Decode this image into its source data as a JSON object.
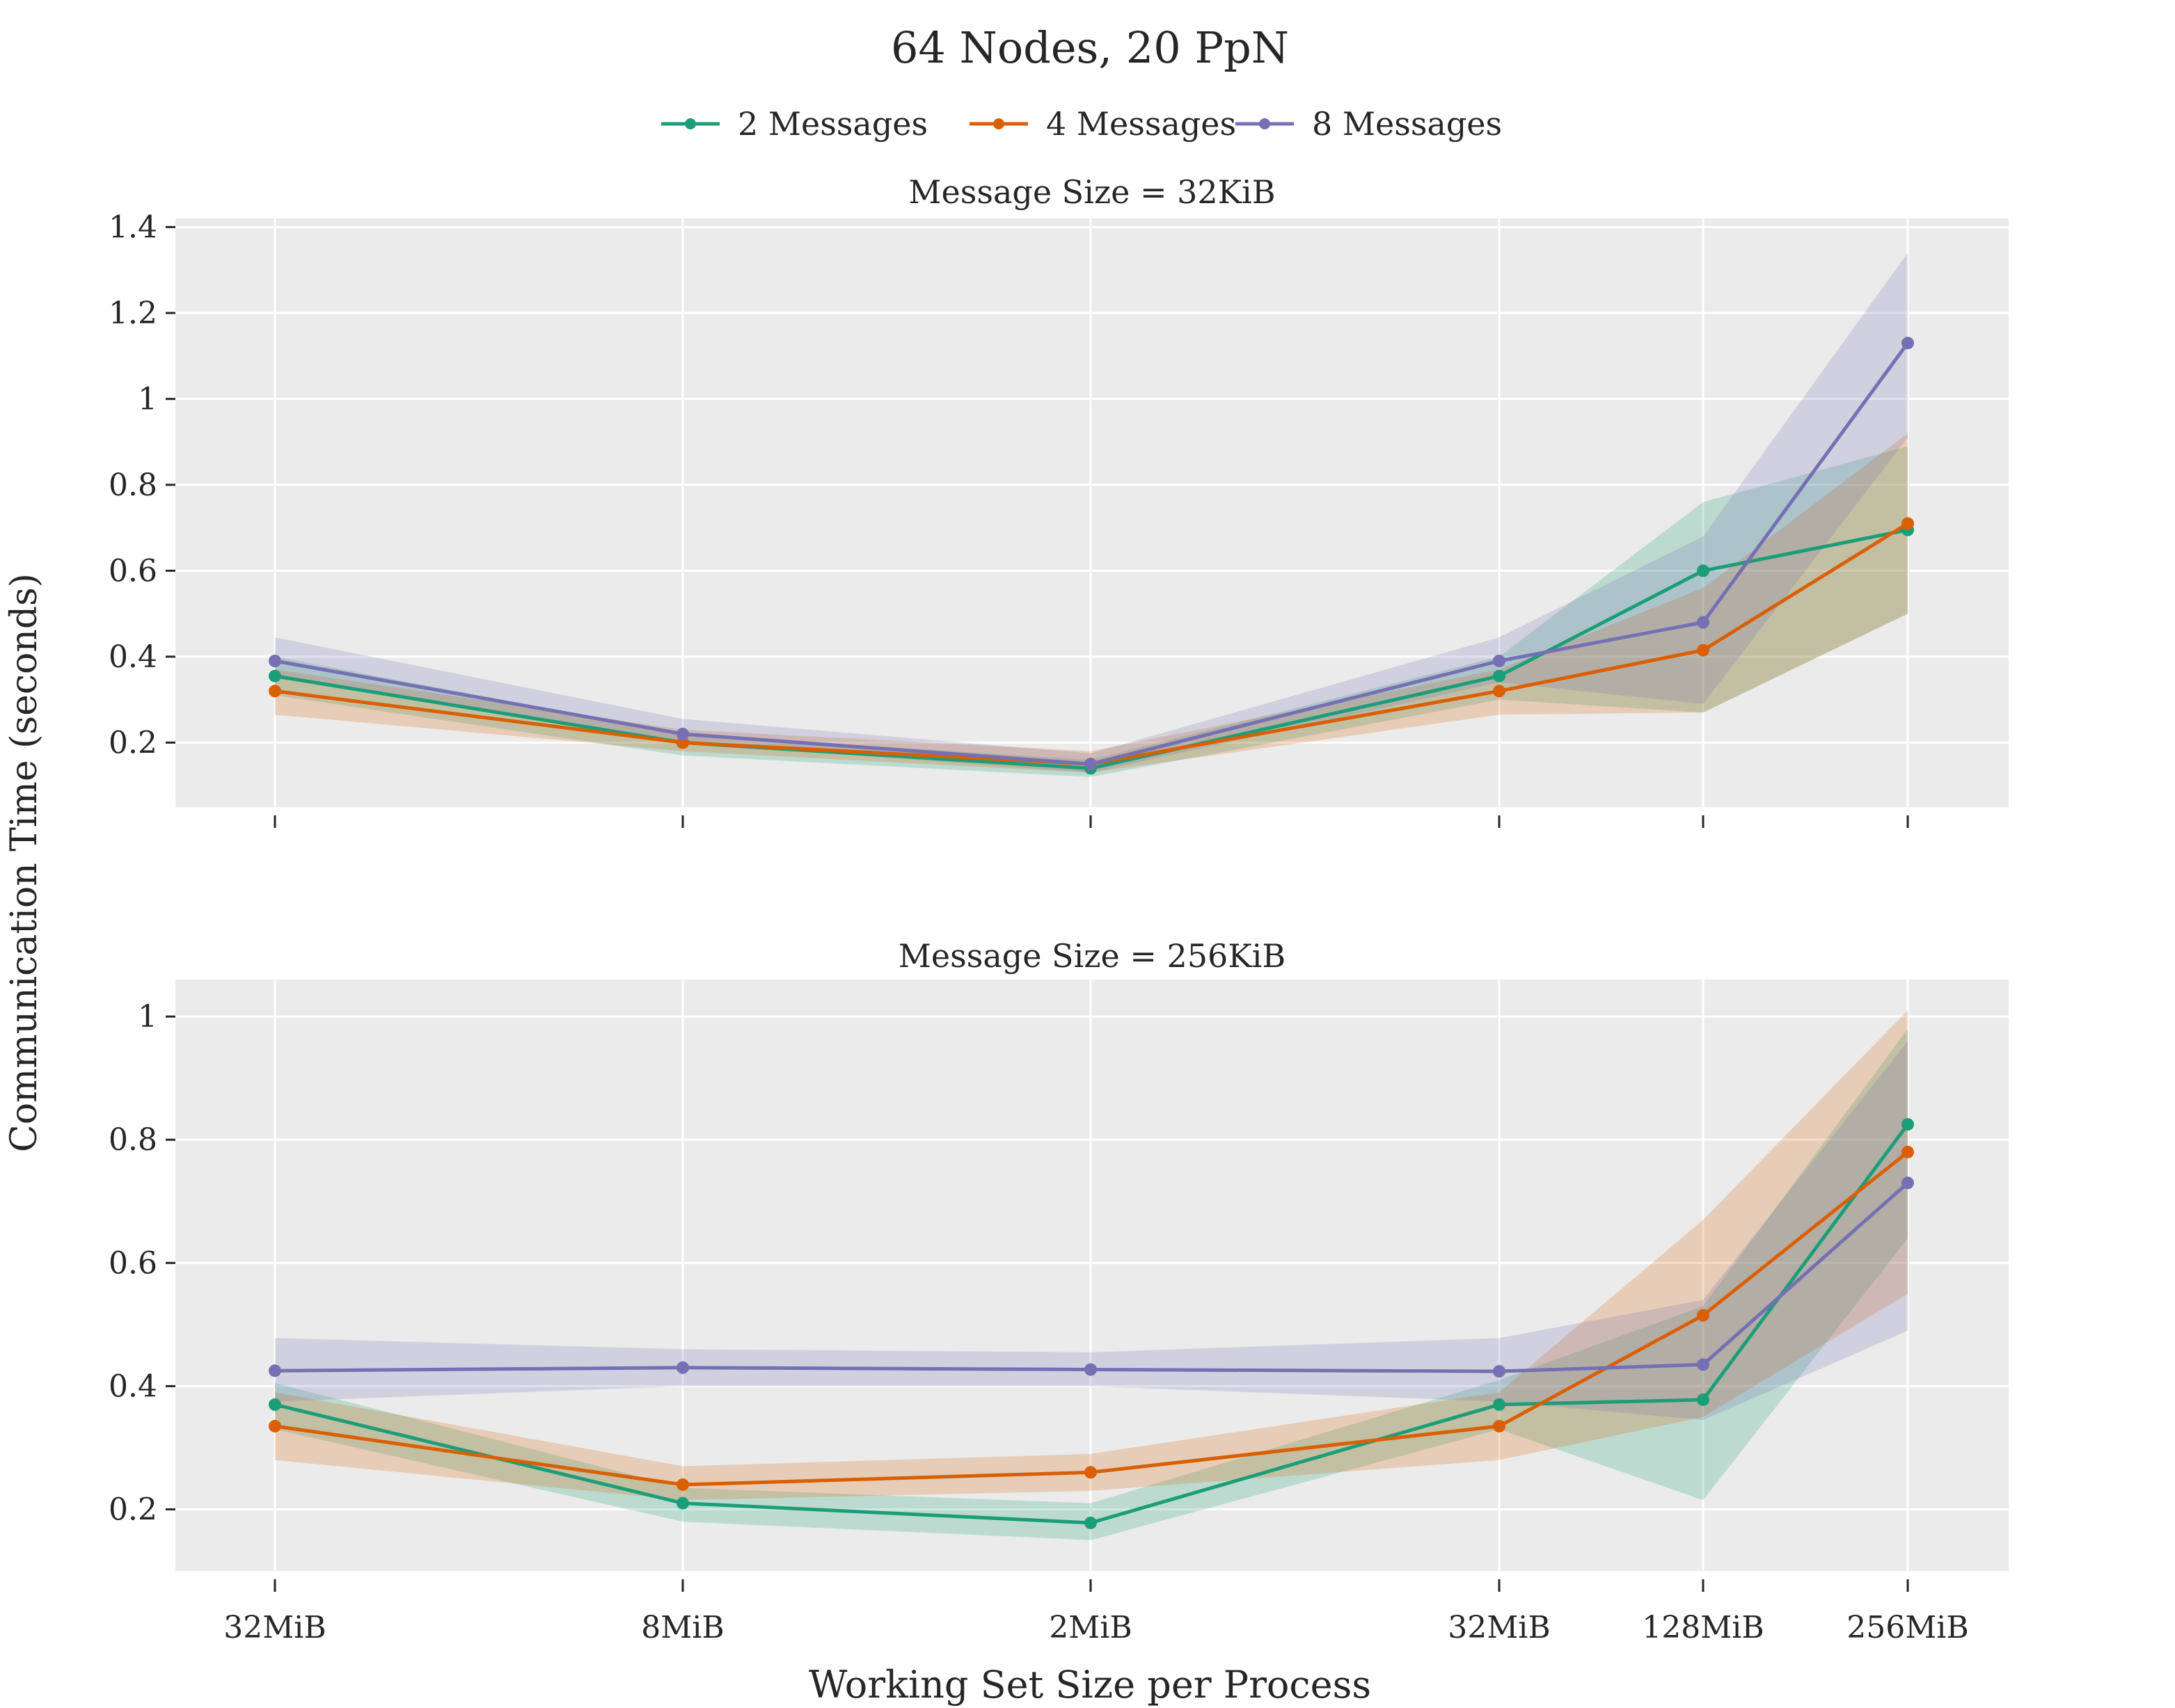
{
  "chart_data": {
    "type": "line",
    "title": "64 Nodes, 20 PpN",
    "xlabel": "Working Set Size per Process",
    "ylabel": "Communication Time (seconds)",
    "x_categories": [
      "32MiB",
      "8MiB",
      "2MiB",
      "32MiB",
      "128MiB",
      "256MiB"
    ],
    "legend": {
      "placement": "top-center",
      "entries": [
        "2 Messages",
        "4 Messages",
        "8 Messages"
      ]
    },
    "colors": {
      "s2": "#1b9e77",
      "s4": "#d95f02",
      "s8": "#7570b3",
      "plot_bg": "#ebebeb",
      "grid": "#ffffff"
    },
    "grid": true,
    "panels": [
      {
        "title": "Message Size = 32KiB",
        "ylim": [
          0.05,
          1.42
        ],
        "yticks": [
          0.2,
          0.4,
          0.6,
          0.8,
          1.0,
          1.2,
          1.4
        ],
        "ytick_labels": [
          "0.2",
          "0.4",
          "0.6",
          "0.8",
          "1",
          "1.2",
          "1.4"
        ],
        "show_x_tick_labels": false,
        "series": [
          {
            "name": "2 Messages",
            "values": [
              0.355,
              0.2,
              0.14,
              0.355,
              0.6,
              0.695
            ],
            "lower": [
              0.31,
              0.17,
              0.12,
              0.3,
              0.27,
              0.5
            ],
            "upper": [
              0.4,
              0.22,
              0.16,
              0.4,
              0.76,
              0.89
            ]
          },
          {
            "name": "4 Messages",
            "values": [
              0.32,
              0.2,
              0.15,
              0.32,
              0.415,
              0.71
            ],
            "lower": [
              0.265,
              0.18,
              0.13,
              0.265,
              0.27,
              0.5
            ],
            "upper": [
              0.37,
              0.23,
              0.18,
              0.37,
              0.56,
              0.92
            ]
          },
          {
            "name": "8 Messages",
            "values": [
              0.39,
              0.22,
              0.15,
              0.39,
              0.48,
              1.13
            ],
            "lower": [
              0.35,
              0.2,
              0.13,
              0.34,
              0.29,
              0.91
            ],
            "upper": [
              0.445,
              0.255,
              0.175,
              0.445,
              0.68,
              1.34
            ]
          }
        ]
      },
      {
        "title": "Message Size = 256KiB",
        "ylim": [
          0.1,
          1.06
        ],
        "yticks": [
          0.2,
          0.4,
          0.6,
          0.8,
          1.0
        ],
        "ytick_labels": [
          "0.2",
          "0.4",
          "0.6",
          "0.8",
          "1"
        ],
        "show_x_tick_labels": true,
        "series": [
          {
            "name": "2 Messages",
            "values": [
              0.37,
              0.21,
              0.178,
              0.37,
              0.378,
              0.825
            ],
            "lower": [
              0.33,
              0.18,
              0.15,
              0.33,
              0.215,
              0.64
            ],
            "upper": [
              0.405,
              0.235,
              0.21,
              0.41,
              0.53,
              0.98
            ]
          },
          {
            "name": "4 Messages",
            "values": [
              0.335,
              0.24,
              0.26,
              0.335,
              0.515,
              0.78
            ],
            "lower": [
              0.28,
              0.215,
              0.23,
              0.28,
              0.35,
              0.55
            ],
            "upper": [
              0.39,
              0.27,
              0.29,
              0.39,
              0.67,
              1.01
            ]
          },
          {
            "name": "8 Messages",
            "values": [
              0.425,
              0.43,
              0.427,
              0.424,
              0.435,
              0.73
            ],
            "lower": [
              0.375,
              0.4,
              0.4,
              0.375,
              0.345,
              0.49
            ],
            "upper": [
              0.478,
              0.46,
              0.455,
              0.478,
              0.54,
              0.96
            ]
          }
        ]
      }
    ]
  }
}
